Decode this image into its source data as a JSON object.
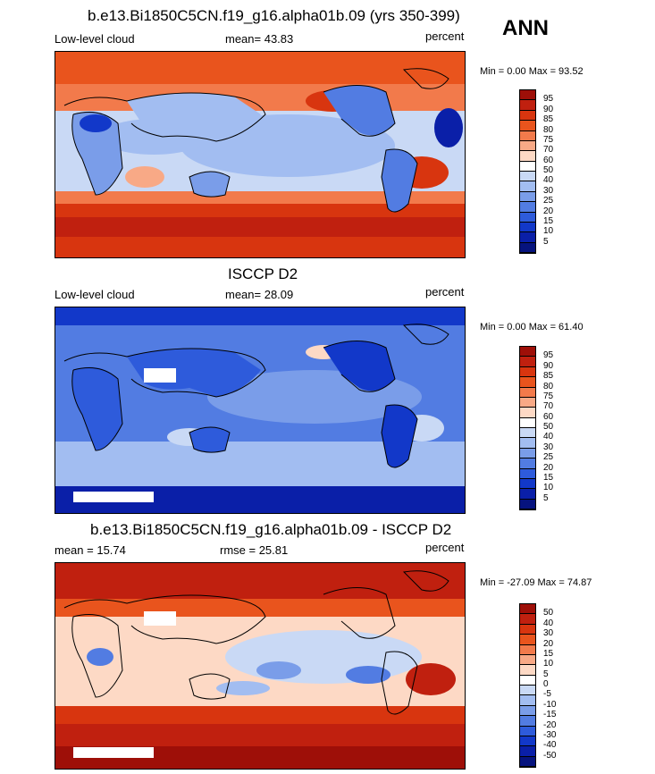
{
  "season": "ANN",
  "panels": [
    {
      "title": "b.e13.Bi1850C5CN.f19_g16.alpha01b.09 (yrs 350-399)",
      "left_label": "Low-level cloud",
      "center_label": "mean=  43.83",
      "right_label": "percent",
      "minmax": "Min =   0.00 Max =  93.52",
      "colorbar_labels": [
        "95",
        "90",
        "85",
        "80",
        "75",
        "70",
        "60",
        "50",
        "40",
        "30",
        "25",
        "20",
        "15",
        "10",
        "5"
      ],
      "colorbar_colors": [
        "#9e0f08",
        "#c0200f",
        "#d8350f",
        "#e9541d",
        "#f27a4b",
        "#f8a986",
        "#fdd9c5",
        "#ffffff",
        "#c9d9f5",
        "#a2bdf1",
        "#7a9de9",
        "#527ce2",
        "#2e5bdb",
        "#1238c9",
        "#0a1fa8",
        "#06137e"
      ]
    },
    {
      "title": "ISCCP D2",
      "left_label": "Low-level cloud",
      "center_label": "mean=  28.09",
      "right_label": "percent",
      "minmax": "Min =   0.00 Max =  61.40",
      "colorbar_labels": [
        "95",
        "90",
        "85",
        "80",
        "75",
        "70",
        "60",
        "50",
        "40",
        "30",
        "25",
        "20",
        "15",
        "10",
        "5"
      ],
      "colorbar_colors": [
        "#9e0f08",
        "#c0200f",
        "#d8350f",
        "#e9541d",
        "#f27a4b",
        "#f8a986",
        "#fdd9c5",
        "#ffffff",
        "#c9d9f5",
        "#a2bdf1",
        "#7a9de9",
        "#527ce2",
        "#2e5bdb",
        "#1238c9",
        "#0a1fa8",
        "#06137e"
      ]
    },
    {
      "title": "b.e13.Bi1850C5CN.f19_g16.alpha01b.09 - ISCCP D2",
      "left_label": "mean =  15.74",
      "center_label": "rmse =  25.81",
      "right_label": "percent",
      "minmax": "Min = -27.09 Max =  74.87",
      "colorbar_labels": [
        "50",
        "40",
        "30",
        "20",
        "15",
        "10",
        "5",
        "0",
        "-5",
        "-10",
        "-15",
        "-20",
        "-30",
        "-40",
        "-50"
      ],
      "colorbar_colors": [
        "#9e0f08",
        "#c0200f",
        "#d8350f",
        "#e9541d",
        "#f27a4b",
        "#f8a986",
        "#fdd9c5",
        "#ffffff",
        "#c9d9f5",
        "#a2bdf1",
        "#7a9de9",
        "#527ce2",
        "#2e5bdb",
        "#1238c9",
        "#0a1fa8",
        "#06137e"
      ]
    }
  ]
}
